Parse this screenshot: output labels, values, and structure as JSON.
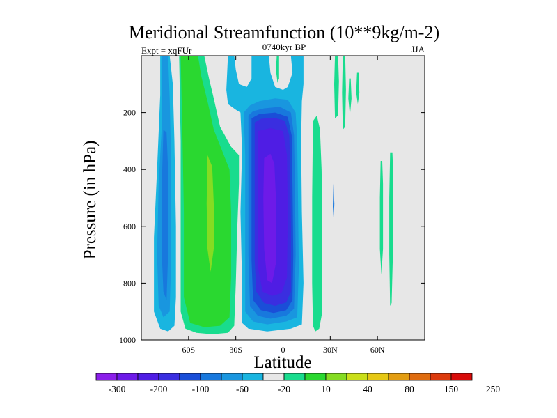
{
  "chart_data": {
    "type": "heatmap",
    "title": "Meridional Streamfunction (10**9kg/m-2)",
    "left_string": "Expt = xqFUr",
    "center_string": "0740kyr BP",
    "right_string": "JJA",
    "xlabel": "Latitude",
    "ylabel": "Pressure (in hPa)",
    "xlim": [
      -90,
      90
    ],
    "ylim": [
      1000,
      0
    ],
    "x_ticks": [
      {
        "value": -60,
        "label": "60S"
      },
      {
        "value": -30,
        "label": "30S"
      },
      {
        "value": 0,
        "label": "0"
      },
      {
        "value": 30,
        "label": "30N"
      },
      {
        "value": 60,
        "label": "60N"
      }
    ],
    "y_ticks": [
      {
        "value": 200,
        "label": "200"
      },
      {
        "value": 400,
        "label": "400"
      },
      {
        "value": 600,
        "label": "600"
      },
      {
        "value": 800,
        "label": "800"
      },
      {
        "value": 1000,
        "label": "1000"
      }
    ],
    "colorbar": {
      "levels": [
        "-300",
        "-200",
        "-100",
        "-60",
        "-20",
        "10",
        "40",
        "80",
        "150",
        "250"
      ],
      "colors": [
        "#8b1fea",
        "#6d1ae8",
        "#4f1de4",
        "#3a2ee0",
        "#1a4ed8",
        "#1878dd",
        "#1996df",
        "#19b5e0",
        "#e7e7e7",
        "#19dc8e",
        "#2ad830",
        "#85dc22",
        "#cadf19",
        "#e6c814",
        "#e39d12",
        "#df6c10",
        "#dc3a0d",
        "#d80c0a"
      ]
    },
    "contours": [
      {
        "name": "sh-cell-outer",
        "color": "#19b5e0",
        "points": [
          [
            -78,
            0
          ],
          [
            -78,
            140
          ],
          [
            -80,
            400
          ],
          [
            -82,
            640
          ],
          [
            -82,
            900
          ],
          [
            -78,
            960
          ],
          [
            -73,
            970
          ],
          [
            -69,
            950
          ],
          [
            -68,
            850
          ],
          [
            -68,
            600
          ],
          [
            -69,
            300
          ],
          [
            -70,
            100
          ],
          [
            -72,
            0
          ]
        ]
      },
      {
        "name": "sh-cell-mid",
        "color": "#1996df",
        "points": [
          [
            -77,
            0
          ],
          [
            -77,
            250
          ],
          [
            -79,
            450
          ],
          [
            -80,
            700
          ],
          [
            -79,
            880
          ],
          [
            -76,
            920
          ],
          [
            -72,
            900
          ],
          [
            -71,
            700
          ],
          [
            -71,
            400
          ],
          [
            -72,
            150
          ],
          [
            -73,
            0
          ]
        ]
      },
      {
        "name": "sh-cell-core",
        "color": "#1878dd",
        "points": [
          [
            -76,
            260
          ],
          [
            -77,
            450
          ],
          [
            -77,
            700
          ],
          [
            -76,
            830
          ],
          [
            -74,
            860
          ],
          [
            -73,
            700
          ],
          [
            -73,
            400
          ],
          [
            -74,
            270
          ]
        ]
      },
      {
        "name": "mid-band-outer",
        "color": "#19dc8e",
        "points": [
          [
            -66,
            0
          ],
          [
            -65,
            300
          ],
          [
            -65,
            600
          ],
          [
            -65,
            900
          ],
          [
            -62,
            960
          ],
          [
            -55,
            975
          ],
          [
            -45,
            980
          ],
          [
            -35,
            975
          ],
          [
            -31,
            950
          ],
          [
            -30,
            800
          ],
          [
            -29,
            600
          ],
          [
            -28,
            450
          ],
          [
            -28,
            350
          ],
          [
            -33,
            320
          ],
          [
            -40,
            250
          ],
          [
            -44,
            150
          ],
          [
            -47,
            80
          ],
          [
            -50,
            0
          ]
        ]
      },
      {
        "name": "mid-band-inner",
        "color": "#2ad830",
        "points": [
          [
            -65,
            0
          ],
          [
            -64,
            250
          ],
          [
            -63,
            550
          ],
          [
            -63,
            850
          ],
          [
            -59,
            940
          ],
          [
            -50,
            955
          ],
          [
            -40,
            950
          ],
          [
            -34,
            920
          ],
          [
            -33,
            780
          ],
          [
            -33,
            550
          ],
          [
            -34,
            400
          ],
          [
            -39,
            330
          ],
          [
            -44,
            260
          ],
          [
            -48,
            160
          ],
          [
            -52,
            70
          ],
          [
            -54,
            0
          ]
        ]
      },
      {
        "name": "mid-band-core",
        "color": "#85dc22",
        "points": [
          [
            -48,
            350
          ],
          [
            -48.5,
            520
          ],
          [
            -48,
            680
          ],
          [
            -46,
            760
          ],
          [
            -44,
            680
          ],
          [
            -44,
            520
          ],
          [
            -45,
            390
          ]
        ]
      },
      {
        "name": "hadley-outer",
        "color": "#19b5e0",
        "points": [
          [
            -35,
            0
          ],
          [
            -36,
            120
          ],
          [
            -35,
            170
          ],
          [
            -30,
            190
          ],
          [
            -27,
            200
          ],
          [
            -26,
            330
          ],
          [
            -27,
            550
          ],
          [
            -26,
            800
          ],
          [
            -26,
            940
          ],
          [
            -22,
            960
          ],
          [
            -10,
            970
          ],
          [
            5,
            960
          ],
          [
            12,
            945
          ],
          [
            13,
            800
          ],
          [
            12,
            550
          ],
          [
            11.5,
            300
          ],
          [
            12,
            160
          ],
          [
            13,
            100
          ],
          [
            13,
            0
          ],
          [
            5,
            0
          ],
          [
            6,
            60
          ],
          [
            3,
            110
          ],
          [
            0,
            120
          ],
          [
            -5,
            110
          ],
          [
            -8,
            60
          ],
          [
            -9,
            0
          ],
          [
            -20,
            0
          ],
          [
            -20,
            80
          ],
          [
            -23,
            110
          ],
          [
            -28,
            100
          ],
          [
            -30,
            50
          ],
          [
            -31,
            0
          ]
        ]
      },
      {
        "name": "hadley-c1",
        "color": "#1996df",
        "points": [
          [
            -25,
            200
          ],
          [
            -24,
            350
          ],
          [
            -24,
            650
          ],
          [
            -24,
            900
          ],
          [
            -19,
            935
          ],
          [
            -10,
            945
          ],
          [
            2,
            935
          ],
          [
            9,
            920
          ],
          [
            10,
            750
          ],
          [
            9.5,
            500
          ],
          [
            9,
            300
          ],
          [
            8,
            200
          ],
          [
            3,
            155
          ],
          [
            -5,
            150
          ],
          [
            -15,
            160
          ],
          [
            -21,
            175
          ]
        ]
      },
      {
        "name": "hadley-c2",
        "color": "#1878dd",
        "points": [
          [
            -22,
            210
          ],
          [
            -22,
            400
          ],
          [
            -22,
            700
          ],
          [
            -21,
            880
          ],
          [
            -16,
            915
          ],
          [
            -8,
            925
          ],
          [
            2,
            915
          ],
          [
            7,
            890
          ],
          [
            8,
            700
          ],
          [
            7.5,
            450
          ],
          [
            7,
            280
          ],
          [
            5,
            200
          ],
          [
            -2,
            180
          ],
          [
            -12,
            185
          ],
          [
            -19,
            195
          ]
        ]
      },
      {
        "name": "hadley-c3",
        "color": "#1a4ed8",
        "points": [
          [
            -20,
            220
          ],
          [
            -20,
            450
          ],
          [
            -20,
            720
          ],
          [
            -19,
            860
          ],
          [
            -14,
            895
          ],
          [
            -6,
            905
          ],
          [
            2,
            895
          ],
          [
            6,
            860
          ],
          [
            6.5,
            700
          ],
          [
            6,
            450
          ],
          [
            5.5,
            280
          ],
          [
            3,
            215
          ],
          [
            -5,
            200
          ],
          [
            -15,
            205
          ]
        ]
      },
      {
        "name": "hadley-c4",
        "color": "#3a2ee0",
        "points": [
          [
            -18,
            235
          ],
          [
            -18,
            450
          ],
          [
            -18,
            720
          ],
          [
            -17,
            830
          ],
          [
            -12,
            870
          ],
          [
            -5,
            880
          ],
          [
            2,
            868
          ],
          [
            5,
            830
          ],
          [
            5,
            600
          ],
          [
            4.5,
            400
          ],
          [
            4,
            280
          ],
          [
            1,
            228
          ],
          [
            -6,
            218
          ],
          [
            -14,
            222
          ]
        ]
      },
      {
        "name": "hadley-c5",
        "color": "#4f1de4",
        "points": [
          [
            -16,
            265
          ],
          [
            -16,
            500
          ],
          [
            -16,
            740
          ],
          [
            -13,
            830
          ],
          [
            -7,
            845
          ],
          [
            -1,
            835
          ],
          [
            2.5,
            780
          ],
          [
            3,
            550
          ],
          [
            2.5,
            350
          ],
          [
            0,
            265
          ],
          [
            -8,
            255
          ]
        ]
      },
      {
        "name": "hadley-c6",
        "color": "#6d1ae8",
        "points": [
          [
            -12,
            360
          ],
          [
            -12.5,
            500
          ],
          [
            -12,
            680
          ],
          [
            -10,
            790
          ],
          [
            -7,
            800
          ],
          [
            -4.5,
            730
          ],
          [
            -4.5,
            500
          ],
          [
            -5.5,
            380
          ],
          [
            -8,
            345
          ]
        ]
      },
      {
        "name": "nh-band",
        "color": "#19dc8e",
        "points": [
          [
            19,
            230
          ],
          [
            18.5,
            500
          ],
          [
            18.5,
            800
          ],
          [
            19,
            950
          ],
          [
            20.5,
            970
          ],
          [
            23,
            960
          ],
          [
            25,
            900
          ],
          [
            25,
            600
          ],
          [
            24.5,
            400
          ],
          [
            23.5,
            260
          ],
          [
            21.5,
            210
          ]
        ]
      },
      {
        "name": "nh-sliver-1",
        "color": "#19dc8e",
        "points": [
          [
            -4,
            0
          ],
          [
            -4.5,
            50
          ],
          [
            -3.5,
            95
          ],
          [
            -2.5,
            80
          ],
          [
            -2.5,
            0
          ]
        ]
      },
      {
        "name": "nh-sliver-2",
        "color": "#19dc8e",
        "points": [
          [
            33,
            0
          ],
          [
            32.5,
            100
          ],
          [
            33,
            220
          ],
          [
            35,
            210
          ],
          [
            35.5,
            90
          ],
          [
            35,
            0
          ]
        ]
      },
      {
        "name": "nh-sliver-3",
        "color": "#19dc8e",
        "points": [
          [
            38,
            0
          ],
          [
            37.5,
            130
          ],
          [
            38,
            260
          ],
          [
            39.5,
            250
          ],
          [
            40,
            120
          ],
          [
            39.5,
            0
          ]
        ]
      },
      {
        "name": "nh-sliver-4",
        "color": "#19dc8e",
        "points": [
          [
            42,
            80
          ],
          [
            41.5,
            150
          ],
          [
            42.5,
            210
          ],
          [
            43.5,
            150
          ],
          [
            43,
            80
          ]
        ]
      },
      {
        "name": "nh-sliver-5",
        "color": "#19dc8e",
        "points": [
          [
            47,
            60
          ],
          [
            46.5,
            130
          ],
          [
            47.5,
            170
          ],
          [
            48.5,
            130
          ],
          [
            48,
            60
          ]
        ]
      },
      {
        "name": "nh-tick-1",
        "color": "#1878dd",
        "points": [
          [
            32,
            450
          ],
          [
            31.6,
            530
          ],
          [
            32.2,
            580
          ],
          [
            32.6,
            520
          ]
        ]
      },
      {
        "name": "nh-sliver-6",
        "color": "#19dc8e",
        "points": [
          [
            62,
            370
          ],
          [
            61.5,
            500
          ],
          [
            61.5,
            680
          ],
          [
            62.5,
            770
          ],
          [
            63.5,
            680
          ],
          [
            63.5,
            450
          ],
          [
            63,
            370
          ]
        ]
      },
      {
        "name": "nh-sliver-7",
        "color": "#19dc8e",
        "points": [
          [
            68,
            340
          ],
          [
            67.5,
            500
          ],
          [
            67.5,
            700
          ],
          [
            68,
            880
          ],
          [
            69,
            870
          ],
          [
            70,
            650
          ],
          [
            70,
            420
          ],
          [
            69.5,
            340
          ]
        ]
      }
    ]
  }
}
